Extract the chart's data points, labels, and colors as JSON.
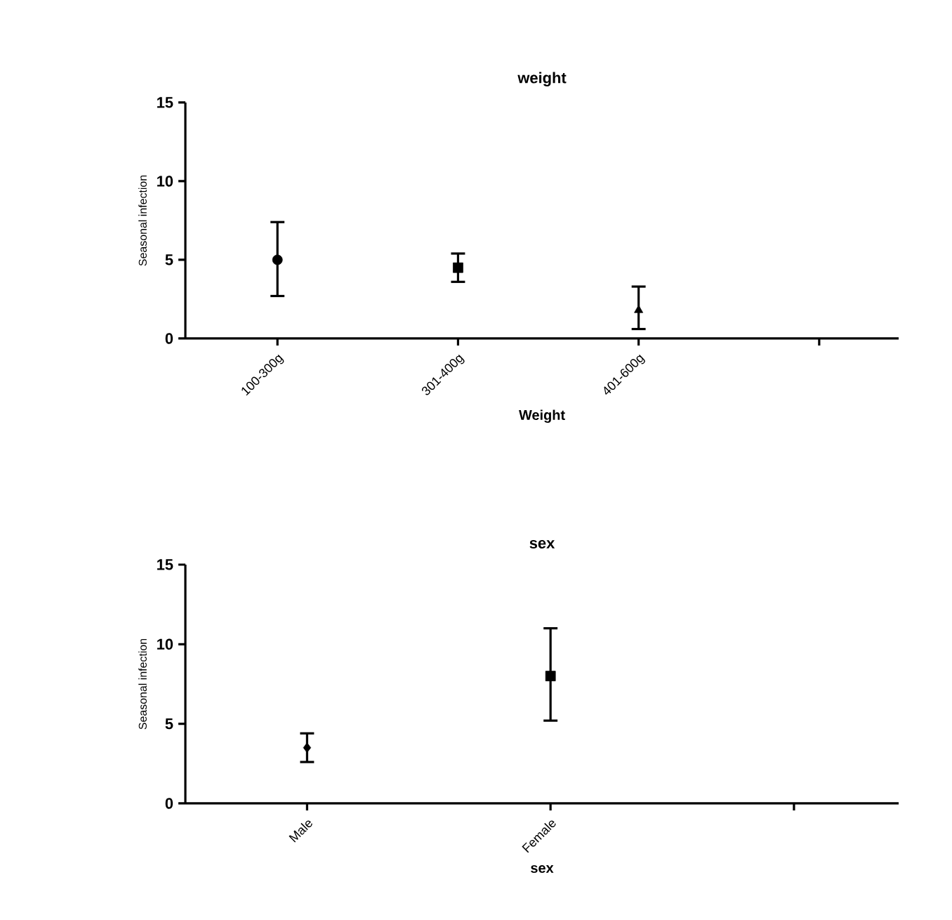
{
  "chart_data": [
    {
      "type": "scatter",
      "title": "weight",
      "xlabel": "Weight",
      "ylabel": "Seasonal infection",
      "categories": [
        "100-300g",
        "301-400g",
        "401-600g",
        null
      ],
      "ylim": [
        0,
        15
      ],
      "yticks": [
        0,
        5,
        10,
        15
      ],
      "series": [
        {
          "color": "#000000",
          "marker": "circle",
          "values": [
            5.0,
            null,
            null,
            null
          ],
          "errors": [
            [
              2.7,
              7.4
            ],
            null,
            null,
            null
          ]
        },
        {
          "color": "#000000",
          "marker": "square",
          "values": [
            null,
            4.5,
            null,
            null
          ],
          "errors": [
            null,
            [
              3.6,
              5.4
            ],
            null,
            null
          ]
        },
        {
          "color": "#000000",
          "marker": "triangle",
          "values": [
            null,
            null,
            1.8,
            null
          ],
          "errors": [
            null,
            null,
            [
              0.6,
              3.3
            ],
            null
          ]
        }
      ]
    },
    {
      "type": "scatter",
      "title": "sex",
      "xlabel": "sex",
      "ylabel": "Seasonal infection",
      "categories": [
        "Male",
        "Female",
        null
      ],
      "ylim": [
        0,
        15
      ],
      "yticks": [
        0,
        5,
        10,
        15
      ],
      "series": [
        {
          "color": "#000000",
          "marker": "diamond",
          "values": [
            3.5,
            null,
            null
          ],
          "errors": [
            [
              2.6,
              4.4
            ],
            null,
            null
          ]
        },
        {
          "color": "#000000",
          "marker": "square",
          "values": [
            null,
            8.0,
            null
          ],
          "errors": [
            null,
            [
              5.2,
              11.0
            ],
            null
          ]
        }
      ]
    }
  ]
}
